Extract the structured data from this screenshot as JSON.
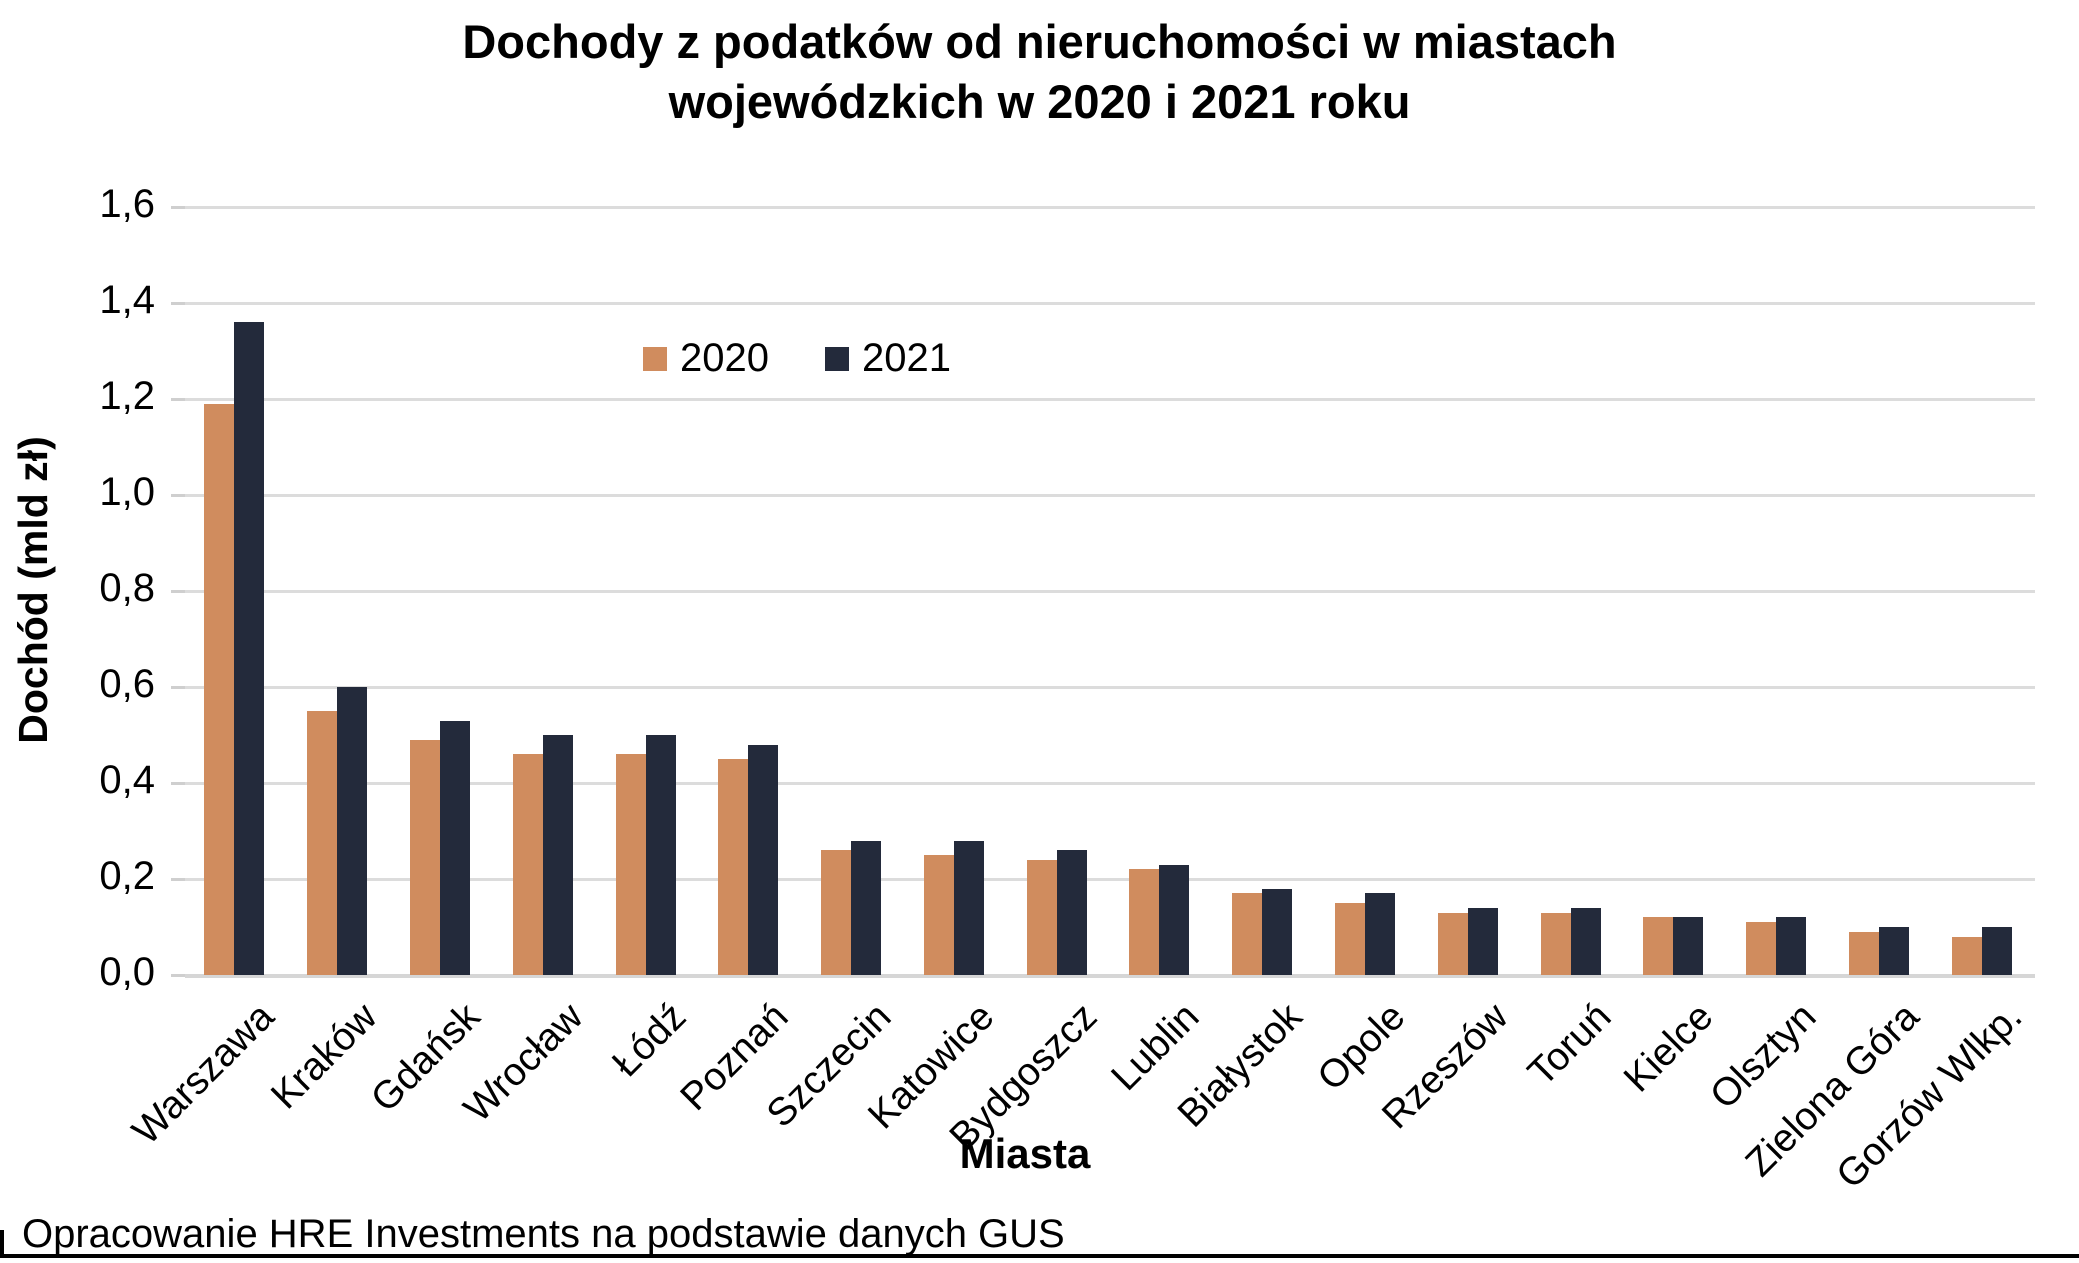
{
  "header": {
    "title_line1": "Dochody z podatków od nieruchomości w miastach",
    "title_line2": "wojewódzkich w 2020 i 2021 roku"
  },
  "footer": {
    "source_note": "Opracowanie HRE Investments na podstawie danych GUS"
  },
  "colors": {
    "bar_2020": "#D08C5E",
    "bar_2021": "#232A3B",
    "gridline": "#DCDCDC",
    "text": "#000000"
  },
  "chart_data": {
    "type": "bar",
    "title": "Dochody z podatków od nieruchomości w miastach wojewódzkich w 2020 i 2021 roku",
    "xlabel": "Miasta",
    "ylabel": "Dochód (mld zł)",
    "ylim": [
      0,
      1.6
    ],
    "ytick_step": 0.2,
    "ytick_labels_top_to_bottom": [
      "1,6",
      "1,4",
      "1,2",
      "1,0",
      "0,8",
      "0,6",
      "0,4",
      "0,2",
      "0,0"
    ],
    "grid": true,
    "legend_position": "top-center",
    "categories": [
      "Warszawa",
      "Kraków",
      "Gdańsk",
      "Wrocław",
      "Łódź",
      "Poznań",
      "Szczecin",
      "Katowice",
      "Bydgoszcz",
      "Lublin",
      "Białystok",
      "Opole",
      "Rzeszów",
      "Toruń",
      "Kielce",
      "Olsztyn",
      "Zielona Góra",
      "Gorzów Wlkp."
    ],
    "series": [
      {
        "name": "2020",
        "color": "#D08C5E",
        "values": [
          1.19,
          0.55,
          0.49,
          0.46,
          0.46,
          0.45,
          0.26,
          0.25,
          0.24,
          0.22,
          0.17,
          0.15,
          0.13,
          0.13,
          0.12,
          0.11,
          0.09,
          0.08
        ]
      },
      {
        "name": "2021",
        "color": "#232A3B",
        "values": [
          1.36,
          0.6,
          0.53,
          0.5,
          0.5,
          0.48,
          0.28,
          0.28,
          0.26,
          0.23,
          0.18,
          0.17,
          0.14,
          0.14,
          0.12,
          0.12,
          0.1,
          0.1
        ]
      }
    ]
  }
}
